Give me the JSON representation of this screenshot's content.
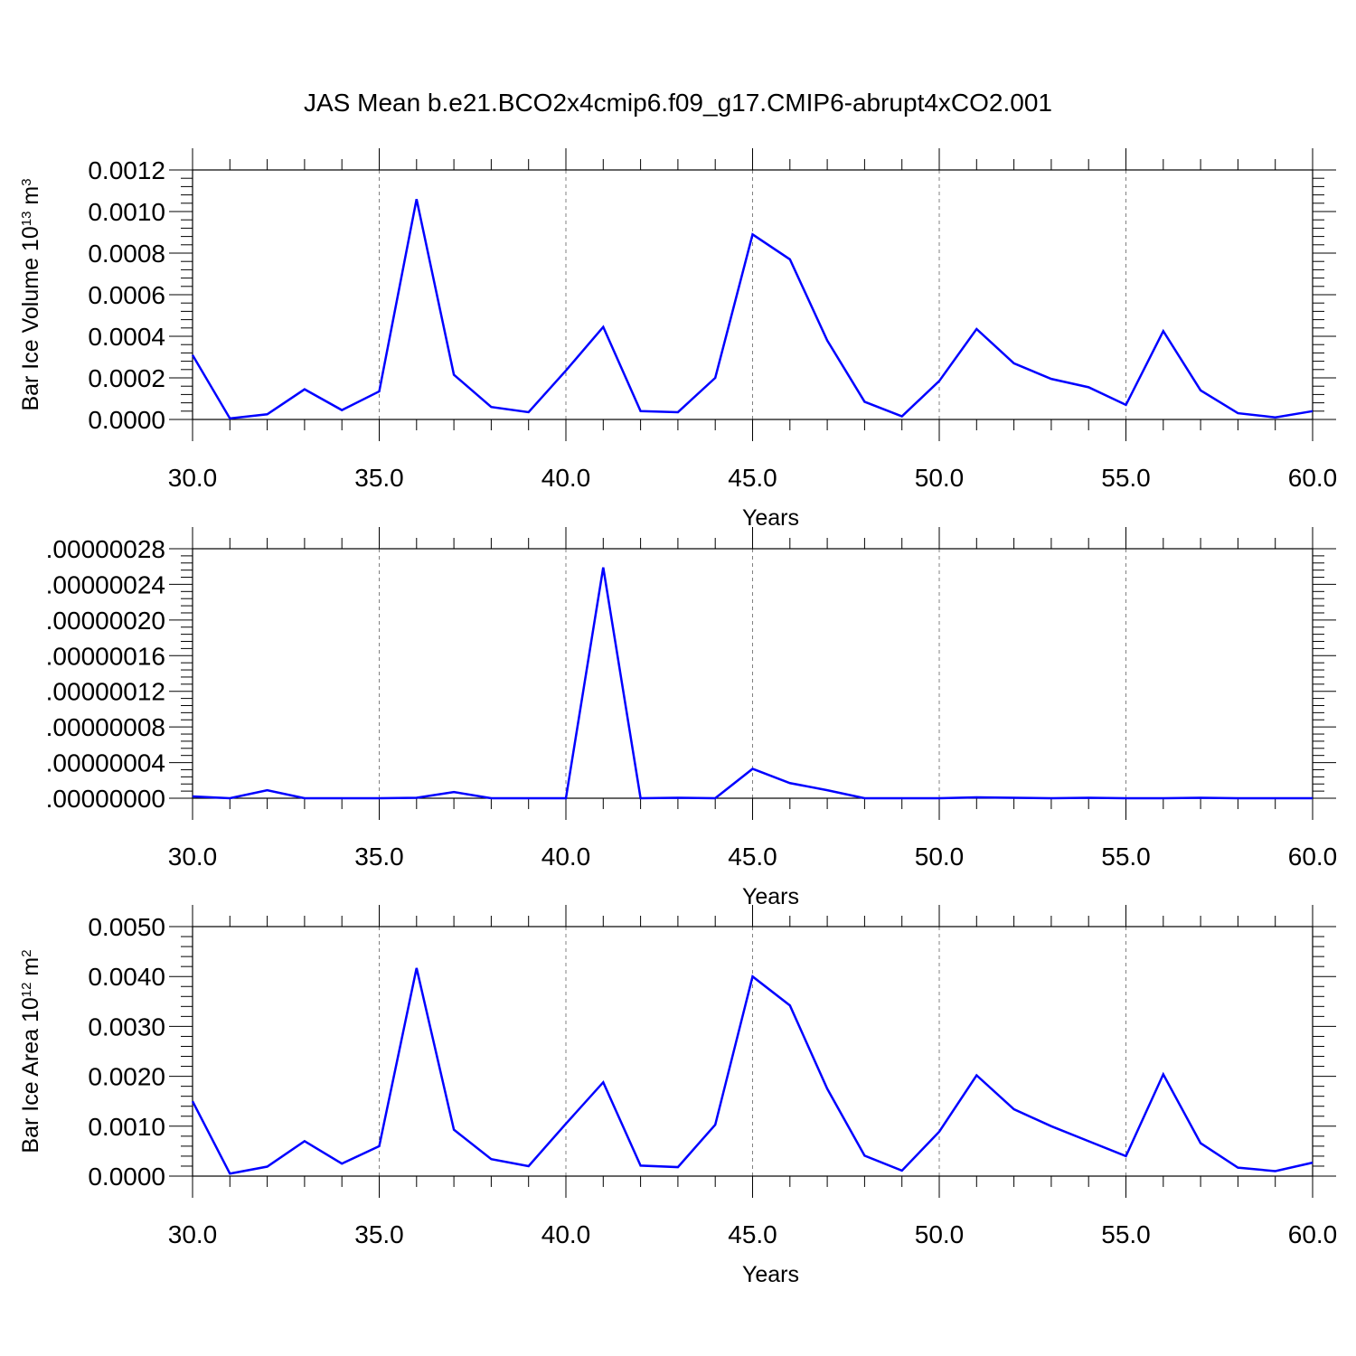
{
  "figure_title": "JAS Mean b.e21.BCO2x4cmip6.f09_g17.CMIP6-abrupt4xCO2.001",
  "colors": {
    "series": "#0000ff",
    "axes": "#000000",
    "grid": "#808080"
  },
  "chart_data": [
    {
      "type": "line",
      "title": "",
      "xlabel": "Years",
      "ylabel": "Bar Ice Volume 10",
      "ylabel_exp": "13",
      "ylabel_unit": " m",
      "ylabel_unit_exp": "3",
      "xlim": [
        30,
        60
      ],
      "ylim": [
        0,
        0.0012
      ],
      "xticks": [
        30,
        35,
        40,
        45,
        50,
        55,
        60
      ],
      "xtick_labels": [
        "30.0",
        "35.0",
        "40.0",
        "45.0",
        "50.0",
        "55.0",
        "60.0"
      ],
      "yticks": [
        0,
        0.0002,
        0.0004,
        0.0006,
        0.0008,
        0.001,
        0.0012
      ],
      "ytick_labels": [
        "0.0000",
        "0.0002",
        "0.0004",
        "0.0006",
        "0.0008",
        "0.0010",
        "0.0012"
      ],
      "grid": "dashed vertical at major x ticks",
      "x": [
        30,
        31,
        32,
        33,
        34,
        35,
        36,
        37,
        38,
        39,
        40,
        41,
        42,
        43,
        44,
        45,
        46,
        47,
        48,
        49,
        50,
        51,
        52,
        53,
        54,
        55,
        56,
        57,
        58,
        59,
        60
      ],
      "series": [
        {
          "values": [
            0.00031,
            5e-06,
            2.5e-05,
            0.000145,
            4.5e-05,
            0.000135,
            0.00106,
            0.000215,
            6e-05,
            3.5e-05,
            0.000235,
            0.000445,
            4e-05,
            3.5e-05,
            0.0002,
            0.00089,
            0.00077,
            0.00038,
            8.5e-05,
            1.5e-05,
            0.000185,
            0.000435,
            0.00027,
            0.000195,
            0.000155,
            7e-05,
            0.000425,
            0.00014,
            3e-05,
            1e-05,
            4e-05
          ]
        }
      ]
    },
    {
      "type": "line",
      "title": "",
      "xlabel": "Years",
      "ylabel": "",
      "xlim": [
        30,
        60
      ],
      "ylim": [
        0,
        2.8e-07
      ],
      "xticks": [
        30,
        35,
        40,
        45,
        50,
        55,
        60
      ],
      "xtick_labels": [
        "30.0",
        "35.0",
        "40.0",
        "45.0",
        "50.0",
        "55.0",
        "60.0"
      ],
      "yticks": [
        0,
        4e-08,
        8e-08,
        1.2e-07,
        1.6e-07,
        2e-07,
        2.4e-07,
        2.8e-07
      ],
      "ytick_labels": [
        ".00000000",
        ".00000004",
        ".00000008",
        ".00000012",
        ".00000016",
        ".00000020",
        ".00000024",
        ".00000028"
      ],
      "grid": "dashed vertical at major x ticks",
      "x": [
        30,
        31,
        32,
        33,
        34,
        35,
        36,
        37,
        38,
        39,
        40,
        41,
        42,
        43,
        44,
        45,
        46,
        47,
        48,
        49,
        50,
        51,
        52,
        53,
        54,
        55,
        56,
        57,
        58,
        59,
        60
      ],
      "series": [
        {
          "values": [
            2e-09,
            0.0,
            9e-09,
            0.0,
            0.0,
            0.0,
            5e-10,
            7e-09,
            0.0,
            0.0,
            0.0,
            2.59e-07,
            0.0,
            5e-10,
            0.0,
            3.3e-08,
            1.7e-08,
            9e-09,
            0.0,
            0.0,
            0.0,
            1e-09,
            5e-10,
            0.0,
            5e-10,
            0.0,
            0.0,
            5e-10,
            0.0,
            0.0,
            0.0
          ]
        }
      ]
    },
    {
      "type": "line",
      "title": "",
      "xlabel": "Years",
      "ylabel": "Bar Ice Area 10",
      "ylabel_exp": "12",
      "ylabel_unit": " m",
      "ylabel_unit_exp": "2",
      "xlim": [
        30,
        60
      ],
      "ylim": [
        0,
        0.005
      ],
      "xticks": [
        30,
        35,
        40,
        45,
        50,
        55,
        60
      ],
      "xtick_labels": [
        "30.0",
        "35.0",
        "40.0",
        "45.0",
        "50.0",
        "55.0",
        "60.0"
      ],
      "yticks": [
        0,
        0.001,
        0.002,
        0.003,
        0.004,
        0.005
      ],
      "ytick_labels": [
        "0.0000",
        "0.0010",
        "0.0020",
        "0.0030",
        "0.0040",
        "0.0050"
      ],
      "grid": "dashed vertical at major x ticks",
      "x": [
        30,
        31,
        32,
        33,
        34,
        35,
        36,
        37,
        38,
        39,
        40,
        41,
        42,
        43,
        44,
        45,
        46,
        47,
        48,
        49,
        50,
        51,
        52,
        53,
        54,
        55,
        56,
        57,
        58,
        59,
        60
      ],
      "series": [
        {
          "values": [
            0.0015,
            5e-05,
            0.00019,
            0.0007,
            0.00025,
            0.0006,
            0.00417,
            0.00093,
            0.00034,
            0.0002,
            0.00105,
            0.00188,
            0.00021,
            0.00018,
            0.00103,
            0.004,
            0.00342,
            0.00175,
            0.00041,
            0.00011,
            0.00089,
            0.00202,
            0.00134,
            0.001,
            0.0007,
            0.0004,
            0.00204,
            0.00066,
            0.00017,
            0.0001,
            0.00027
          ]
        }
      ]
    }
  ]
}
